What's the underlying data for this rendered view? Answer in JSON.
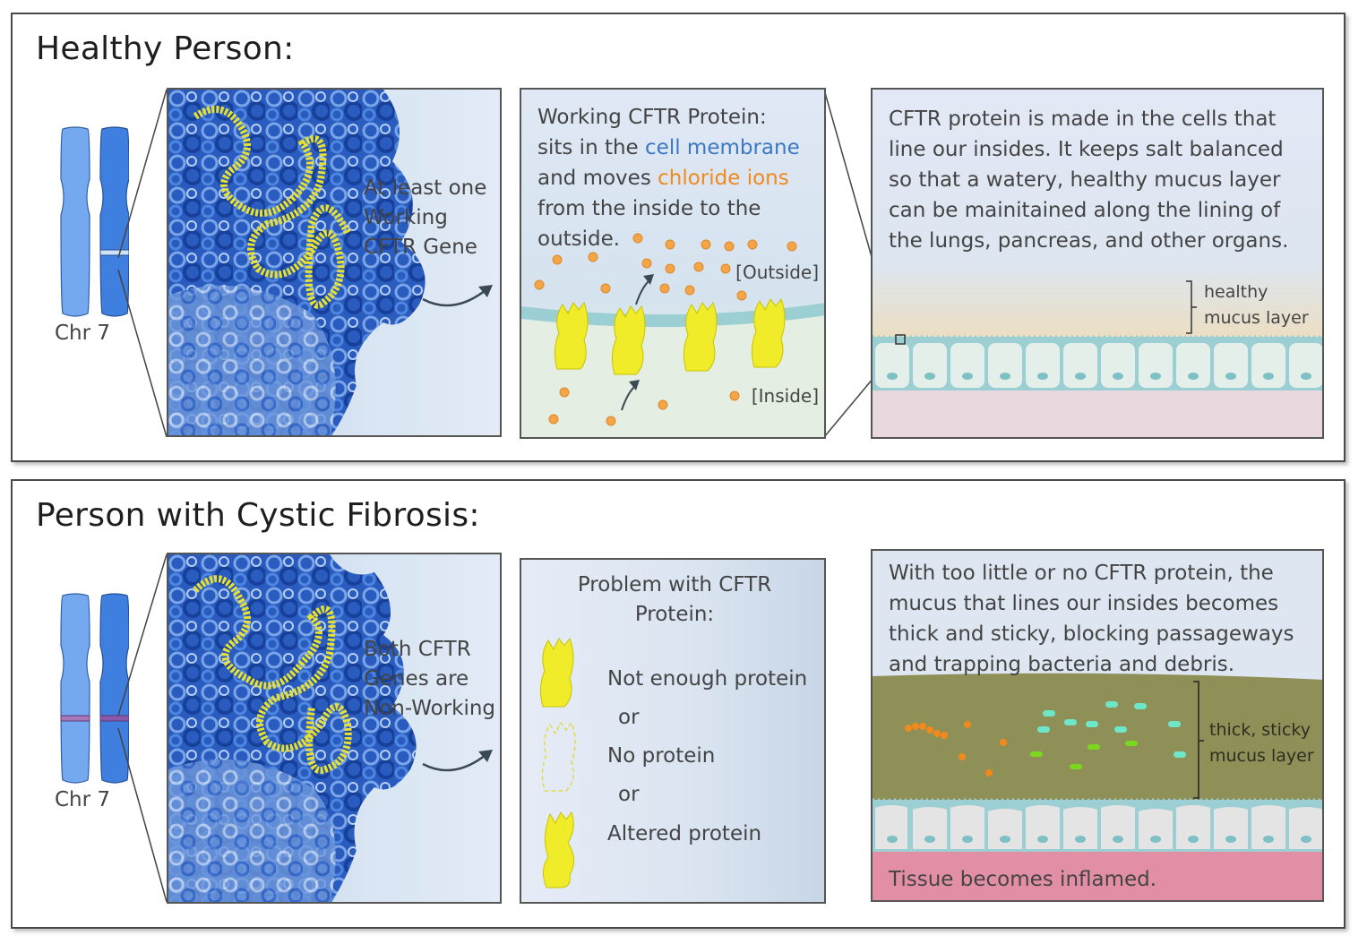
{
  "healthy": {
    "title": "Healthy Person:",
    "chr_label": "Chr 7",
    "gene_text": [
      "At least one",
      "Working",
      "CFTR Gene"
    ],
    "protein_text": {
      "line1": "Working CFTR Protein:",
      "line2_pre": "sits in the ",
      "line2_hl": "cell membrane",
      "line3_pre": "and moves ",
      "line3_hl": "chloride ions",
      "line4": "from the inside to the",
      "line5": "outside."
    },
    "outside_label": "[Outside]",
    "inside_label": "[Inside]",
    "tissue_text": [
      "CFTR protein is made in the cells that",
      "line our insides. It keeps salt balanced",
      "so that a watery, healthy mucus layer",
      "can be mainitained along the lining of",
      "the lungs, pancreas, and other organs."
    ],
    "mucus_label": [
      "healthy",
      "mucus layer"
    ]
  },
  "cf": {
    "title": "Person with Cystic Fibrosis:",
    "chr_label": "Chr 7",
    "gene_text": [
      "Both CFTR",
      "Genes are",
      "Non-Working"
    ],
    "problem_title": [
      "Problem with CFTR",
      "Protein:"
    ],
    "options": [
      "Not enough protein",
      "or",
      "No protein",
      "or",
      "Altered protein"
    ],
    "tissue_text": [
      "With too little or no CFTR protein, the",
      "mucus that lines our insides becomes",
      "thick and sticky, blocking passageways",
      "and trapping bacteria and debris."
    ],
    "mucus_label": [
      "thick, sticky",
      "mucus layer"
    ],
    "inflamed_text": "Tissue becomes inflamed."
  },
  "colors": {
    "chromosome_light": "#74a9f0",
    "chromosome_dark": "#3f7fe0",
    "dna_dark": "#1f4fae",
    "dna_mid": "#3d76d6",
    "dna_light": "#a9c3ec",
    "cftr_gene": "#e8e030",
    "protein": "#f1ec2a",
    "chloride_ion": "#f3a548",
    "membrane": "#9ccfd3",
    "cell_fill": "#e4efe9",
    "healthy_mucus": "#efdcb8",
    "sticky_mucus": "#8f8f58",
    "inflamed_tissue": "#e28fa5"
  }
}
